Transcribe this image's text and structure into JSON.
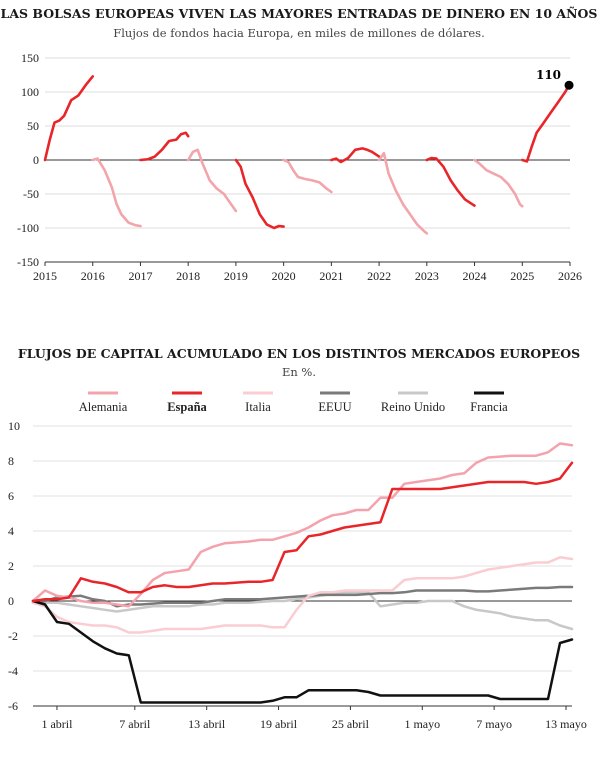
{
  "chart_data": [
    {
      "type": "line",
      "title": "LAS BOLSAS EUROPEAS VIVEN LAS MAYORES ENTRADAS DE DINERO EN 10 AÑOS",
      "subtitle": "Flujos de fondos hacia Europa, en miles de millones de dólares.",
      "xlim": [
        2015,
        2026
      ],
      "ylim": [
        -150,
        150
      ],
      "yticks": [
        150,
        100,
        50,
        0,
        -50,
        -100,
        -150
      ],
      "xticks": [
        2015,
        2016,
        2017,
        2018,
        2019,
        2020,
        2021,
        2022,
        2023,
        2024,
        2025,
        2026
      ],
      "annotation": {
        "label": "110",
        "x": 2025.98,
        "y": 110
      },
      "colors": {
        "positive": "#e8262a",
        "negative": "#f2a5ab",
        "marker": "#000000"
      },
      "series": [
        {
          "year": 2015,
          "color": "positive",
          "points": [
            [
              2015.0,
              0
            ],
            [
              2015.1,
              30
            ],
            [
              2015.2,
              55
            ],
            [
              2015.3,
              58
            ],
            [
              2015.4,
              65
            ],
            [
              2015.55,
              88
            ],
            [
              2015.7,
              95
            ],
            [
              2015.85,
              110
            ],
            [
              2016.0,
              123
            ]
          ]
        },
        {
          "year": 2016,
          "color": "negative",
          "points": [
            [
              2016.0,
              0
            ],
            [
              2016.1,
              2
            ],
            [
              2016.25,
              -15
            ],
            [
              2016.4,
              -40
            ],
            [
              2016.5,
              -65
            ],
            [
              2016.6,
              -80
            ],
            [
              2016.75,
              -92
            ],
            [
              2016.9,
              -96
            ],
            [
              2017.0,
              -97
            ]
          ]
        },
        {
          "year": 2017,
          "color": "positive",
          "points": [
            [
              2017.0,
              0
            ],
            [
              2017.15,
              1
            ],
            [
              2017.3,
              5
            ],
            [
              2017.45,
              15
            ],
            [
              2017.6,
              28
            ],
            [
              2017.75,
              30
            ],
            [
              2017.85,
              38
            ],
            [
              2017.95,
              40
            ],
            [
              2018.0,
              35
            ]
          ]
        },
        {
          "year": 2018,
          "color": "negative",
          "points": [
            [
              2018.0,
              0
            ],
            [
              2018.1,
              12
            ],
            [
              2018.2,
              15
            ],
            [
              2018.3,
              -5
            ],
            [
              2018.45,
              -30
            ],
            [
              2018.6,
              -42
            ],
            [
              2018.75,
              -50
            ],
            [
              2018.9,
              -65
            ],
            [
              2019.0,
              -75
            ]
          ]
        },
        {
          "year": 2019,
          "color": "positive",
          "points": [
            [
              2019.0,
              0
            ],
            [
              2019.1,
              -10
            ],
            [
              2019.2,
              -35
            ],
            [
              2019.35,
              -55
            ],
            [
              2019.5,
              -80
            ],
            [
              2019.65,
              -95
            ],
            [
              2019.8,
              -100
            ],
            [
              2019.9,
              -97
            ],
            [
              2020.0,
              -98
            ]
          ]
        },
        {
          "year": 2020,
          "color": "negative",
          "points": [
            [
              2020.0,
              0
            ],
            [
              2020.1,
              -3
            ],
            [
              2020.2,
              -15
            ],
            [
              2020.3,
              -25
            ],
            [
              2020.45,
              -28
            ],
            [
              2020.6,
              -30
            ],
            [
              2020.75,
              -33
            ],
            [
              2020.9,
              -42
            ],
            [
              2021.0,
              -47
            ]
          ]
        },
        {
          "year": 2021,
          "color": "positive",
          "points": [
            [
              2021.0,
              0
            ],
            [
              2021.1,
              2
            ],
            [
              2021.2,
              -3
            ],
            [
              2021.35,
              3
            ],
            [
              2021.5,
              15
            ],
            [
              2021.65,
              17
            ],
            [
              2021.75,
              15
            ],
            [
              2021.85,
              12
            ],
            [
              2022.0,
              5
            ]
          ]
        },
        {
          "year": 2022,
          "color": "negative",
          "points": [
            [
              2022.0,
              0
            ],
            [
              2022.1,
              10
            ],
            [
              2022.2,
              -20
            ],
            [
              2022.35,
              -45
            ],
            [
              2022.5,
              -65
            ],
            [
              2022.65,
              -80
            ],
            [
              2022.8,
              -95
            ],
            [
              2022.95,
              -105
            ],
            [
              2023.0,
              -108
            ]
          ]
        },
        {
          "year": 2023,
          "color": "positive",
          "points": [
            [
              2023.0,
              0
            ],
            [
              2023.1,
              3
            ],
            [
              2023.2,
              2
            ],
            [
              2023.35,
              -10
            ],
            [
              2023.5,
              -30
            ],
            [
              2023.65,
              -45
            ],
            [
              2023.8,
              -58
            ],
            [
              2023.95,
              -65
            ],
            [
              2024.0,
              -67
            ]
          ]
        },
        {
          "year": 2024,
          "color": "negative",
          "points": [
            [
              2024.0,
              0
            ],
            [
              2024.1,
              -5
            ],
            [
              2024.25,
              -15
            ],
            [
              2024.4,
              -20
            ],
            [
              2024.55,
              -25
            ],
            [
              2024.7,
              -35
            ],
            [
              2024.85,
              -50
            ],
            [
              2024.95,
              -65
            ],
            [
              2025.0,
              -68
            ]
          ]
        },
        {
          "year": 2025,
          "color": "positive",
          "points": [
            [
              2025.0,
              0
            ],
            [
              2025.1,
              -2
            ],
            [
              2025.2,
              20
            ],
            [
              2025.3,
              40
            ],
            [
              2025.45,
              55
            ],
            [
              2025.6,
              70
            ],
            [
              2025.75,
              85
            ],
            [
              2025.9,
              100
            ],
            [
              2025.98,
              110
            ]
          ]
        }
      ]
    },
    {
      "type": "line",
      "title": "FLUJOS DE CAPITAL ACUMULADO EN LOS DISTINTOS MERCADOS EUROPEOS",
      "subtitle": "En %.",
      "ylim": [
        -6,
        10
      ],
      "yticks": [
        10,
        8,
        6,
        4,
        2,
        0,
        -2,
        -4,
        -6
      ],
      "xlim": [
        0,
        45
      ],
      "xticks": [
        {
          "label": "1 abril",
          "x": 2
        },
        {
          "label": "7 abril",
          "x": 8.5
        },
        {
          "label": "13 abril",
          "x": 14.5
        },
        {
          "label": "19 abril",
          "x": 20.5
        },
        {
          "label": "25 abril",
          "x": 26.5
        },
        {
          "label": "1 mayo",
          "x": 32.5
        },
        {
          "label": "7 mayo",
          "x": 38.5
        },
        {
          "label": "13 mayo",
          "x": 44.5
        }
      ],
      "highlight": "España",
      "series": [
        {
          "name": "Alemania",
          "color": "#f4a3ad",
          "width": 2.5,
          "values": [
            0,
            0.6,
            0.3,
            0.2,
            0.0,
            -0.1,
            -0.1,
            -0.2,
            -0.3,
            0.4,
            1.2,
            1.6,
            1.7,
            1.8,
            2.8,
            3.1,
            3.3,
            3.35,
            3.4,
            3.5,
            3.5,
            3.7,
            3.9,
            4.2,
            4.6,
            4.9,
            5.0,
            5.2,
            5.2,
            5.9,
            5.9,
            6.7,
            6.8,
            6.9,
            7.0,
            7.2,
            7.3,
            7.9,
            8.2,
            8.25,
            8.3,
            8.3,
            8.3,
            8.5,
            9.0,
            8.9
          ]
        },
        {
          "name": "España",
          "color": "#e8262a",
          "width": 2.5,
          "values": [
            0.0,
            0.1,
            0.1,
            0.2,
            1.3,
            1.1,
            1.0,
            0.8,
            0.5,
            0.5,
            0.8,
            0.9,
            0.8,
            0.8,
            0.9,
            1.0,
            1.0,
            1.05,
            1.1,
            1.1,
            1.2,
            2.8,
            2.9,
            3.7,
            3.8,
            4.0,
            4.2,
            4.3,
            4.4,
            4.5,
            6.4,
            6.4,
            6.4,
            6.4,
            6.4,
            6.5,
            6.6,
            6.7,
            6.8,
            6.8,
            6.8,
            6.8,
            6.7,
            6.8,
            7.0,
            7.9
          ]
        },
        {
          "name": "Italia",
          "color": "#f9cdd2",
          "width": 2.5,
          "values": [
            -0.1,
            -0.3,
            -0.9,
            -1.2,
            -1.3,
            -1.4,
            -1.4,
            -1.5,
            -1.8,
            -1.8,
            -1.7,
            -1.6,
            -1.6,
            -1.6,
            -1.6,
            -1.5,
            -1.4,
            -1.4,
            -1.4,
            -1.4,
            -1.5,
            -1.5,
            -0.5,
            0.3,
            0.5,
            0.5,
            0.6,
            0.6,
            0.6,
            0.6,
            0.6,
            1.2,
            1.3,
            1.3,
            1.3,
            1.3,
            1.4,
            1.6,
            1.8,
            1.9,
            2.0,
            2.1,
            2.2,
            2.2,
            2.5,
            2.4
          ]
        },
        {
          "name": "EEUU",
          "color": "#7a7a7a",
          "width": 2.5,
          "values": [
            -0.1,
            0.0,
            0.2,
            0.25,
            0.3,
            0.1,
            0.0,
            -0.3,
            -0.2,
            -0.2,
            -0.15,
            -0.1,
            -0.1,
            -0.1,
            -0.1,
            0.0,
            0.1,
            0.1,
            0.1,
            0.1,
            0.15,
            0.2,
            0.25,
            0.3,
            0.35,
            0.35,
            0.35,
            0.35,
            0.4,
            0.45,
            0.45,
            0.5,
            0.6,
            0.6,
            0.6,
            0.6,
            0.6,
            0.55,
            0.55,
            0.6,
            0.65,
            0.7,
            0.75,
            0.75,
            0.8,
            0.8
          ]
        },
        {
          "name": "Reino Unido",
          "color": "#c8c8c8",
          "width": 2.5,
          "values": [
            0.0,
            -0.1,
            -0.1,
            -0.2,
            -0.3,
            -0.4,
            -0.5,
            -0.6,
            -0.5,
            -0.4,
            -0.3,
            -0.3,
            -0.3,
            -0.3,
            -0.2,
            -0.2,
            -0.1,
            -0.1,
            -0.1,
            -0.05,
            0.0,
            0.0,
            0.1,
            0.2,
            0.3,
            0.4,
            0.5,
            0.5,
            0.5,
            -0.3,
            -0.2,
            -0.1,
            -0.1,
            0.0,
            0.0,
            0.0,
            -0.3,
            -0.5,
            -0.6,
            -0.7,
            -0.9,
            -1.0,
            -1.1,
            -1.1,
            -1.4,
            -1.6
          ]
        },
        {
          "name": "Francia",
          "color": "#111111",
          "width": 2.5,
          "values": [
            0.0,
            -0.2,
            -1.2,
            -1.3,
            -1.8,
            -2.3,
            -2.7,
            -3.0,
            -3.1,
            -5.8,
            -5.8,
            -5.8,
            -5.8,
            -5.8,
            -5.8,
            -5.8,
            -5.8,
            -5.8,
            -5.8,
            -5.8,
            -5.7,
            -5.5,
            -5.5,
            -5.1,
            -5.1,
            -5.1,
            -5.1,
            -5.1,
            -5.2,
            -5.4,
            -5.4,
            -5.4,
            -5.4,
            -5.4,
            -5.4,
            -5.4,
            -5.4,
            -5.4,
            -5.4,
            -5.6,
            -5.6,
            -5.6,
            -5.6,
            -5.6,
            -2.4,
            -2.2
          ]
        }
      ]
    }
  ]
}
